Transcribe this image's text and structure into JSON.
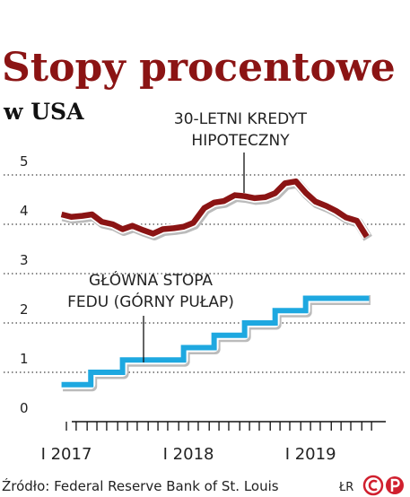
{
  "chart_data": {
    "type": "line",
    "title": "Stopy procentowe",
    "subtitle": "w USA",
    "source": "Źródło: Federal Reserve Bank of St. Louis",
    "author": "ŁR",
    "xlim": [
      2016.75,
      2019.69
    ],
    "ylim": [
      0,
      5
    ],
    "yticks": [
      0,
      1,
      2,
      3,
      4,
      5
    ],
    "xticks": [
      {
        "value": 2017,
        "label": "I 2017"
      },
      {
        "value": 2018,
        "label": "I 2018"
      },
      {
        "value": 2019,
        "label": "I 2019"
      }
    ],
    "xminor_ticks": [
      2017.08,
      2017.17,
      2017.25,
      2017.33,
      2017.42,
      2017.5,
      2017.58,
      2017.67,
      2017.75,
      2017.83,
      2017.92,
      2018.08,
      2018.17,
      2018.25,
      2018.33,
      2018.42,
      2018.5,
      2018.58,
      2018.67,
      2018.75,
      2018.83,
      2018.92,
      2019.08,
      2019.17,
      2019.25,
      2019.33,
      2019.42,
      2019.5
    ],
    "grid": true,
    "series": [
      {
        "name": "30-LETNI KREDYT HIPOTECZNY",
        "color": "#8b1414",
        "step": false,
        "x": [
          2016.96,
          2017.04,
          2017.13,
          2017.21,
          2017.29,
          2017.38,
          2017.46,
          2017.54,
          2017.63,
          2017.71,
          2017.79,
          2017.88,
          2017.96,
          2018.04,
          2018.13,
          2018.21,
          2018.29,
          2018.38,
          2018.46,
          2018.54,
          2018.63,
          2018.71,
          2018.79,
          2018.88,
          2018.96,
          2019.04,
          2019.13,
          2019.21,
          2019.29,
          2019.38,
          2019.46
        ],
        "values": [
          4.2,
          4.15,
          4.17,
          4.2,
          4.05,
          4.0,
          3.9,
          3.97,
          3.88,
          3.81,
          3.9,
          3.92,
          3.95,
          4.03,
          4.33,
          4.44,
          4.47,
          4.59,
          4.57,
          4.53,
          4.55,
          4.63,
          4.83,
          4.87,
          4.64,
          4.46,
          4.37,
          4.27,
          4.14,
          4.07,
          3.75
        ]
      },
      {
        "name": "GŁÓWNA STOPA FEDU (GÓRNY PUŁAP)",
        "color": "#1ea8e0",
        "step": true,
        "x": [
          2016.96,
          2017.2,
          2017.46,
          2017.96,
          2018.21,
          2018.46,
          2018.71,
          2018.96,
          2019.48
        ],
        "values": [
          0.75,
          1,
          1.25,
          1.5,
          1.75,
          2,
          2.25,
          2.5,
          2.5
        ]
      }
    ]
  }
}
